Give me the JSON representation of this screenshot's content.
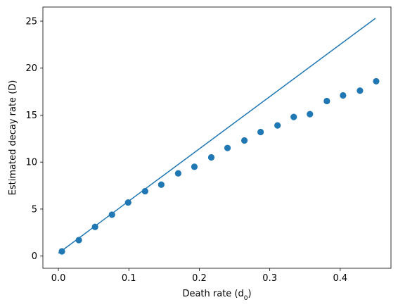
{
  "chart_data": {
    "type": "scatter",
    "xlabel": "Death rate (d",
    "xlabel_sub": "0",
    "xlabel_end": ")",
    "ylabel": "Estimated decay rate (D)",
    "xlim": [
      -0.022,
      0.472
    ],
    "ylim": [
      -1.3,
      26.5
    ],
    "xticks": [
      0.0,
      0.1,
      0.2,
      0.3,
      0.4
    ],
    "xtick_labels": [
      "0.0",
      "0.1",
      "0.2",
      "0.3",
      "0.4"
    ],
    "yticks": [
      0,
      5,
      10,
      15,
      20,
      25
    ],
    "ytick_labels": [
      "0",
      "5",
      "10",
      "15",
      "20",
      "25"
    ],
    "grid": false,
    "color": "#1f77b4",
    "series": [
      {
        "kind": "line",
        "x": [
          0.0,
          0.45
        ],
        "y": [
          0.3,
          25.3
        ]
      },
      {
        "kind": "scatter",
        "x": [
          0.005,
          0.029,
          0.052,
          0.076,
          0.099,
          0.123,
          0.146,
          0.17,
          0.193,
          0.217,
          0.24,
          0.264,
          0.287,
          0.311,
          0.334,
          0.357,
          0.381,
          0.404,
          0.428,
          0.451
        ],
        "y": [
          0.5,
          1.7,
          3.1,
          4.4,
          5.7,
          6.9,
          7.6,
          8.8,
          9.5,
          10.5,
          11.5,
          12.3,
          13.2,
          13.9,
          14.8,
          15.1,
          16.5,
          17.1,
          17.6,
          18.6
        ]
      }
    ]
  }
}
